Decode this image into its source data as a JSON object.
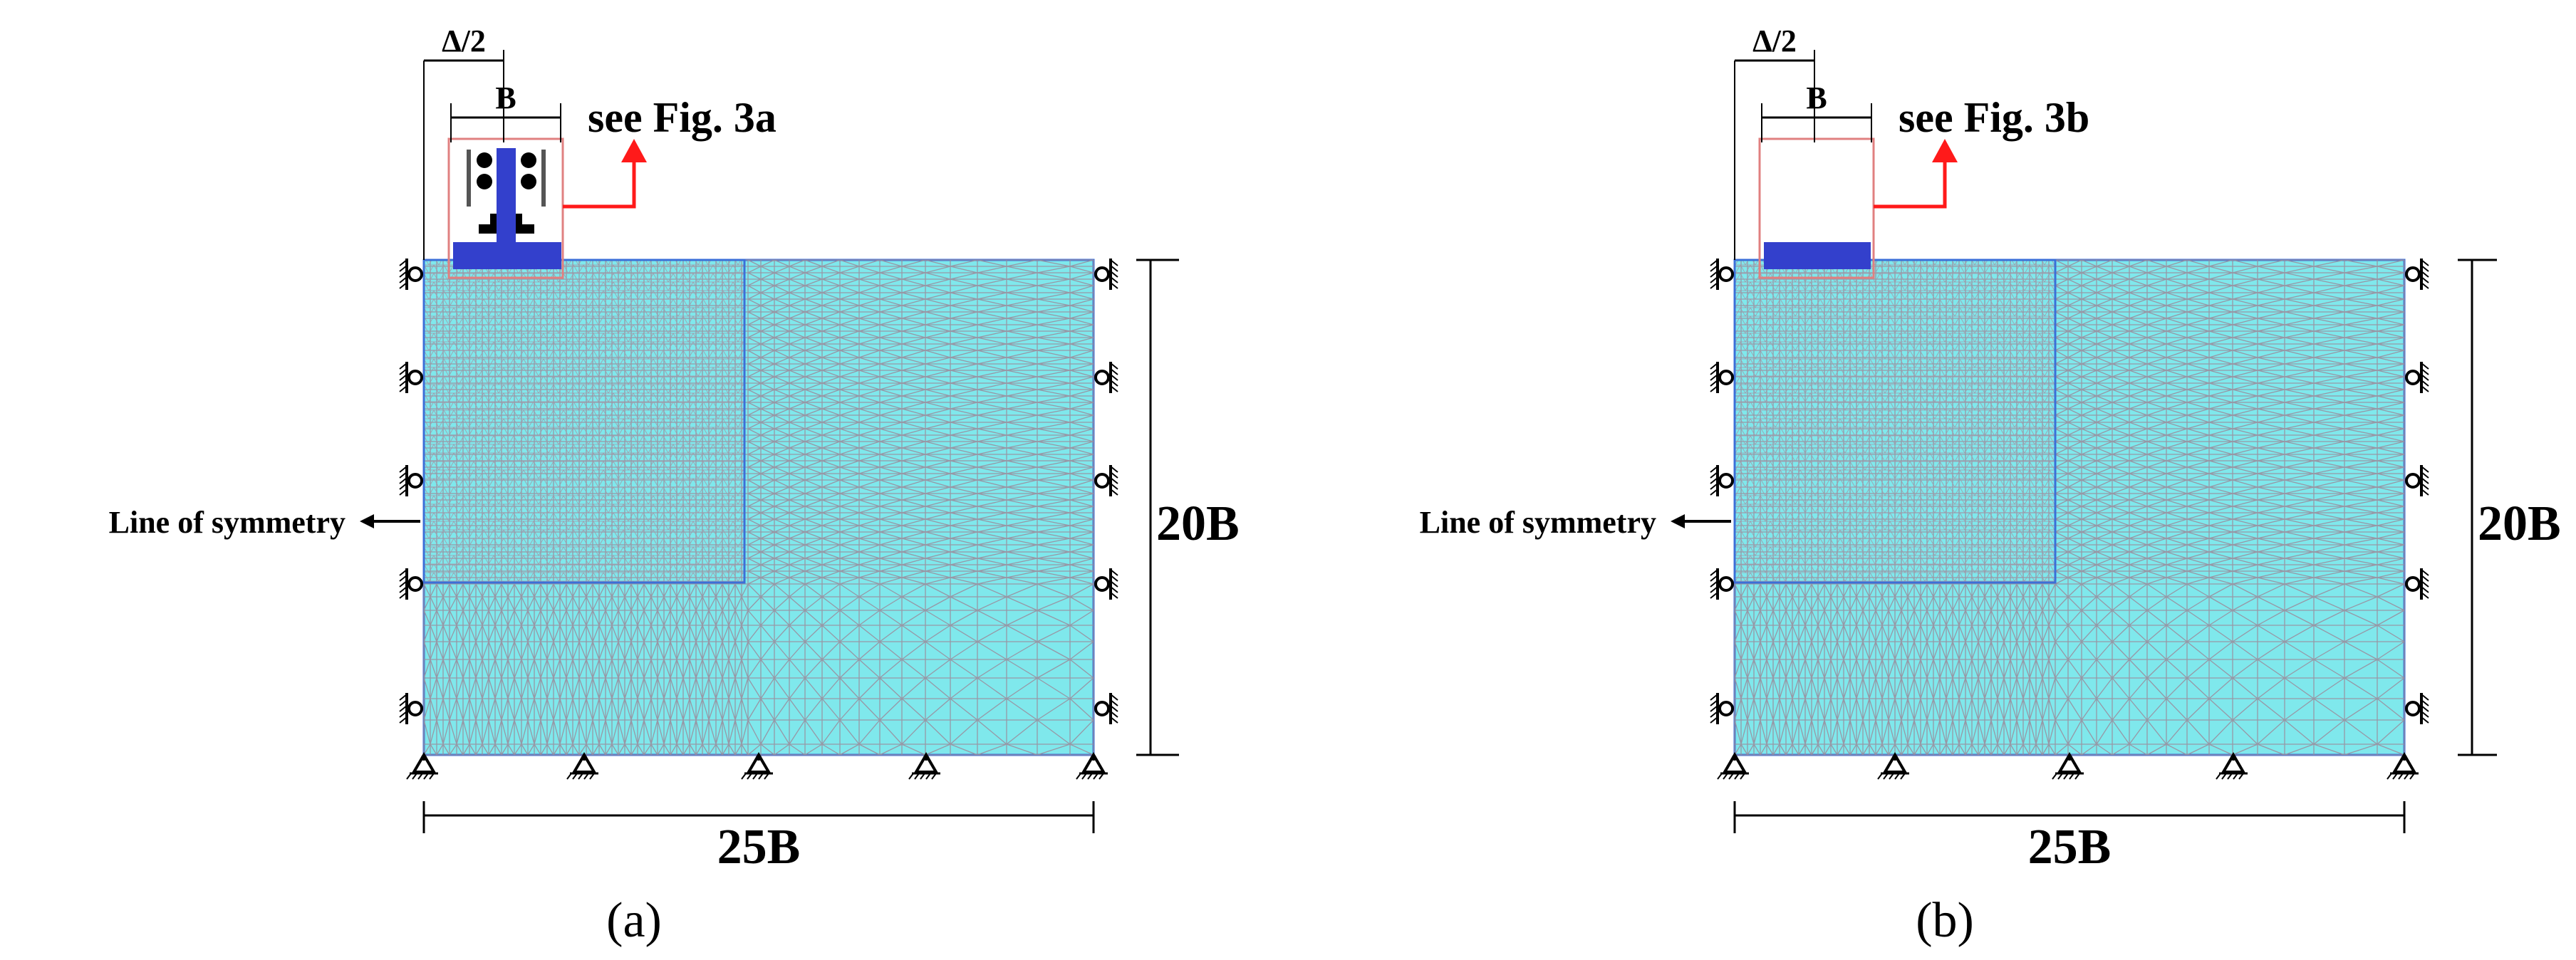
{
  "panels": [
    {
      "id": "a",
      "caption": "(a)",
      "label_half_spacing": "Δ/2",
      "label_width": "B",
      "label_see": "see Fig. 3a",
      "label_symmetry": "Line of symmetry",
      "label_height": "20B",
      "label_length": "25B",
      "footing_detail": "pile-with-rollers"
    },
    {
      "id": "b",
      "caption": "(b)",
      "label_half_spacing": "Δ/2",
      "label_width": "B",
      "label_see": "see Fig. 3b",
      "label_symmetry": "Line of symmetry",
      "label_height": "20B",
      "label_length": "25B",
      "footing_detail": "plain-footing"
    }
  ],
  "colors": {
    "mesh_fill": "#7FE8EC",
    "mesh_line": "#9A8F9F",
    "mesh_border": "#3B6FD8",
    "footing": "#3340CC",
    "detail_box": "#E08080",
    "arrow": "#FF1A1A",
    "ink": "#000000"
  }
}
